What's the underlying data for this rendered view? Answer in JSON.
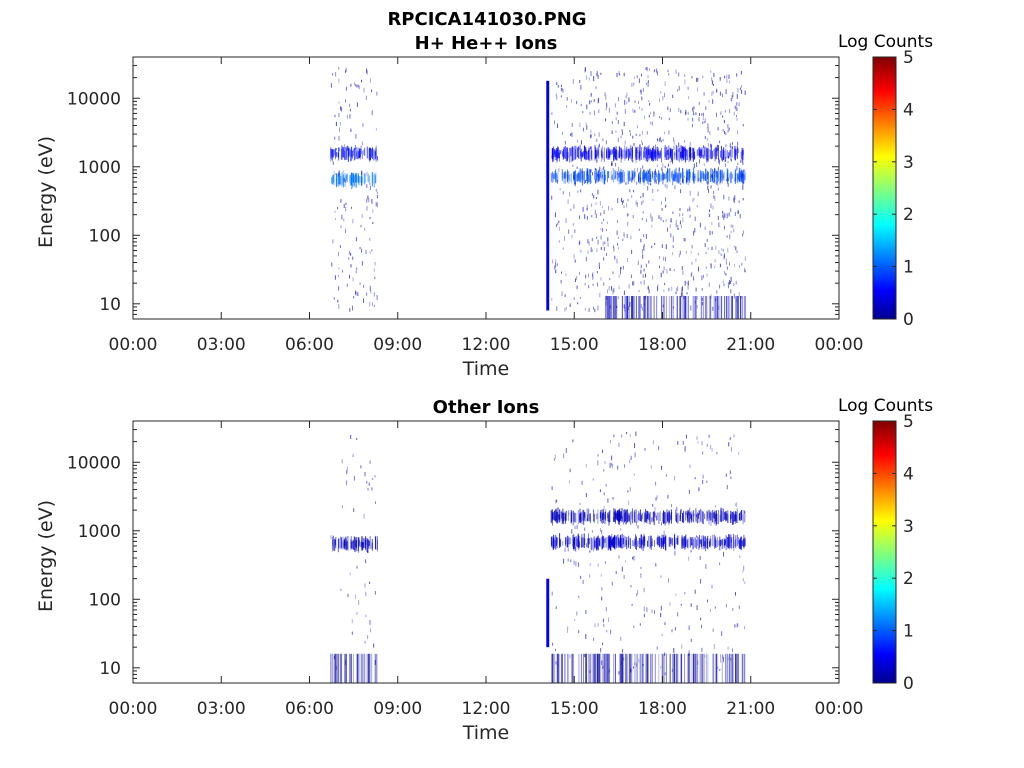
{
  "figure": {
    "title": "RPCICA141030.PNG"
  },
  "chart_data": [
    {
      "type": "heatmap",
      "title": "H+ He++ Ions",
      "xlabel": "Time",
      "ylabel": "Energy (eV)",
      "x_tick_labels": [
        "00:00",
        "03:00",
        "06:00",
        "09:00",
        "12:00",
        "15:00",
        "18:00",
        "21:00",
        "00:00"
      ],
      "xlim_hours": [
        0,
        24
      ],
      "y_scale": "log",
      "ylim": [
        6,
        40000
      ],
      "y_ticks": [
        10,
        100,
        1000,
        10000
      ],
      "y_tick_labels": [
        "10",
        "100",
        "1000",
        "10000"
      ],
      "colorbar": {
        "label": "Log Counts",
        "range": [
          0,
          5
        ],
        "ticks": [
          "0",
          "1",
          "2",
          "3",
          "4",
          "5"
        ],
        "colormap": "jet"
      },
      "features": [
        {
          "t_start": 6.7,
          "t_end": 8.3,
          "energy": 650,
          "log_counts": 1.2
        },
        {
          "t_start": 6.7,
          "t_end": 8.3,
          "energy": 1550,
          "log_counts": 0.7
        },
        {
          "t_start": 14.05,
          "t_end": 14.15,
          "energy_min": 8,
          "energy_max": 18000,
          "log_counts": 0.5
        },
        {
          "t_start": 14.2,
          "t_end": 20.8,
          "energy": 720,
          "log_counts": 1.0
        },
        {
          "t_start": 14.2,
          "t_end": 20.8,
          "energy": 1550,
          "log_counts": 0.6
        },
        {
          "t_start": 16.0,
          "t_end": 20.8,
          "energy_min": 6,
          "energy_max": 13,
          "log_counts": 0.3
        }
      ]
    },
    {
      "type": "heatmap",
      "title": "Other Ions",
      "xlabel": "Time",
      "ylabel": "Energy (eV)",
      "x_tick_labels": [
        "00:00",
        "03:00",
        "06:00",
        "09:00",
        "12:00",
        "15:00",
        "18:00",
        "21:00",
        "00:00"
      ],
      "xlim_hours": [
        0,
        24
      ],
      "y_scale": "log",
      "ylim": [
        6,
        40000
      ],
      "y_ticks": [
        10,
        100,
        1000,
        10000
      ],
      "y_tick_labels": [
        "10",
        "100",
        "1000",
        "10000"
      ],
      "colorbar": {
        "label": "Log Counts",
        "range": [
          0,
          5
        ],
        "ticks": [
          "0",
          "1",
          "2",
          "3",
          "4",
          "5"
        ],
        "colormap": "jet"
      },
      "features": [
        {
          "t_start": 6.7,
          "t_end": 8.3,
          "energy": 640,
          "log_counts": 0.3
        },
        {
          "t_start": 6.7,
          "t_end": 8.3,
          "energy_min": 6,
          "energy_max": 16,
          "log_counts": 0.2
        },
        {
          "t_start": 14.05,
          "t_end": 14.15,
          "energy_min": 20,
          "energy_max": 200,
          "log_counts": 0.6
        },
        {
          "t_start": 14.2,
          "t_end": 20.8,
          "energy": 680,
          "log_counts": 0.4
        },
        {
          "t_start": 14.2,
          "t_end": 20.8,
          "energy": 1600,
          "log_counts": 0.3
        },
        {
          "t_start": 14.2,
          "t_end": 20.8,
          "energy_min": 6,
          "energy_max": 16,
          "log_counts": 0.2
        }
      ]
    }
  ]
}
